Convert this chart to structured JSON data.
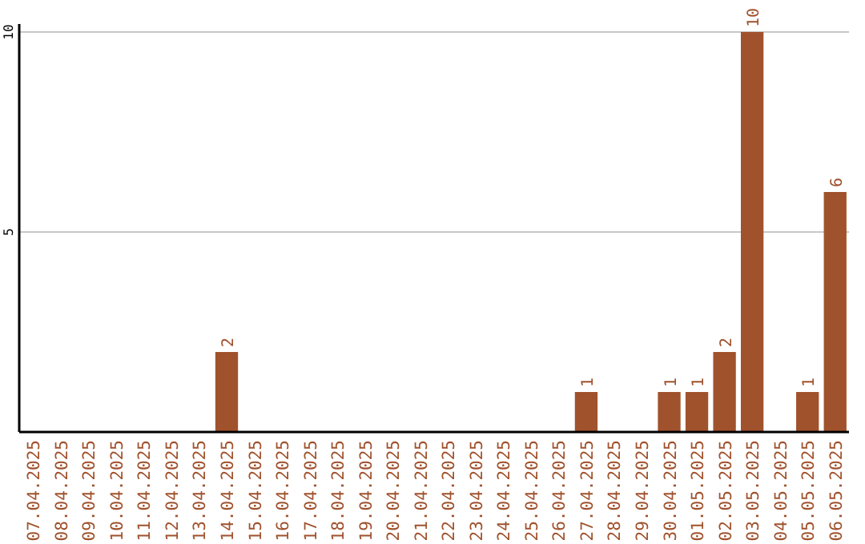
{
  "chart_data": {
    "type": "bar",
    "categories": [
      "07.04.2025",
      "08.04.2025",
      "09.04.2025",
      "10.04.2025",
      "11.04.2025",
      "12.04.2025",
      "13.04.2025",
      "14.04.2025",
      "15.04.2025",
      "16.04.2025",
      "17.04.2025",
      "18.04.2025",
      "19.04.2025",
      "20.04.2025",
      "21.04.2025",
      "22.04.2025",
      "23.04.2025",
      "24.04.2025",
      "25.04.2025",
      "26.04.2025",
      "27.04.2025",
      "28.04.2025",
      "29.04.2025",
      "30.04.2025",
      "01.05.2025",
      "02.05.2025",
      "03.05.2025",
      "04.05.2025",
      "05.05.2025",
      "06.05.2025"
    ],
    "values": [
      0,
      0,
      0,
      0,
      0,
      0,
      0,
      2,
      0,
      0,
      0,
      0,
      0,
      0,
      0,
      0,
      0,
      0,
      0,
      0,
      1,
      0,
      0,
      1,
      1,
      2,
      10,
      0,
      1,
      6
    ],
    "value_labels": [
      null,
      null,
      null,
      null,
      null,
      null,
      null,
      "2",
      null,
      null,
      null,
      null,
      null,
      null,
      null,
      null,
      null,
      null,
      null,
      null,
      "1",
      null,
      null,
      "1",
      "1",
      "2",
      "10",
      null,
      "1",
      "6"
    ],
    "color": "#a0522d",
    "ylim": [
      0,
      10
    ],
    "yticks": [
      5,
      10
    ],
    "grid": "y"
  }
}
